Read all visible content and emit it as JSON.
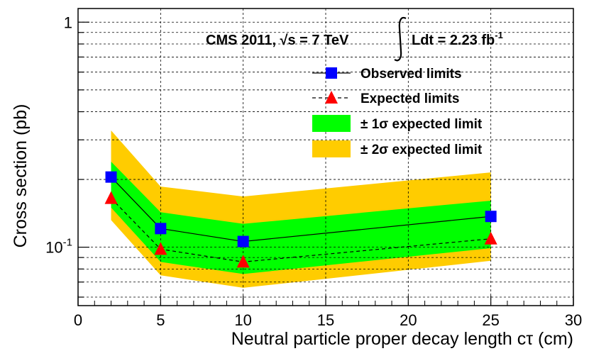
{
  "chart_data": {
    "type": "line",
    "header": {
      "experiment": "CMS 2011, ",
      "sqrt_s": "s = 7 TeV",
      "lumi": "Ldt = 2.23 fb",
      "lumi_exp": "-1"
    },
    "xlabel": "Neutral particle proper decay length cτ (cm)",
    "ylabel": "Cross section (pb)",
    "xlim": [
      0,
      30
    ],
    "ylim": [
      0.055,
      1.15
    ],
    "yscale": "log",
    "grid": true,
    "x_ticks": [
      "0",
      "5",
      "10",
      "15",
      "20",
      "25",
      "30"
    ],
    "y_ticks": [
      {
        "value": 1,
        "base": "1",
        "exp": ""
      },
      {
        "value": 0.1,
        "base": "10",
        "exp": "-1"
      }
    ],
    "x": [
      2,
      5,
      10,
      25
    ],
    "series": [
      {
        "name": "Observed limits",
        "values": [
          0.205,
          0.121,
          0.106,
          0.137
        ],
        "color": "#0000ff",
        "marker": "square",
        "line": "solid"
      },
      {
        "name": "Expected limits",
        "values": [
          0.165,
          0.098,
          0.086,
          0.109
        ],
        "color": "#ff0000",
        "marker": "triangle",
        "line": "dashed"
      }
    ],
    "bands": [
      {
        "name": "± 2σ expected limit",
        "lower": [
          0.132,
          0.075,
          0.066,
          0.087
        ],
        "upper": [
          0.33,
          0.186,
          0.168,
          0.215
        ],
        "color": "#ffcc00"
      },
      {
        "name": "± 1σ expected limit",
        "lower": [
          0.15,
          0.086,
          0.076,
          0.099
        ],
        "upper": [
          0.24,
          0.143,
          0.127,
          0.161
        ],
        "color": "#00ff00"
      }
    ],
    "legend": {
      "placement": "top-right",
      "entries": [
        "Observed limits",
        "Expected limits",
        "± 1σ expected limit",
        "± 2σ expected limit"
      ]
    }
  }
}
